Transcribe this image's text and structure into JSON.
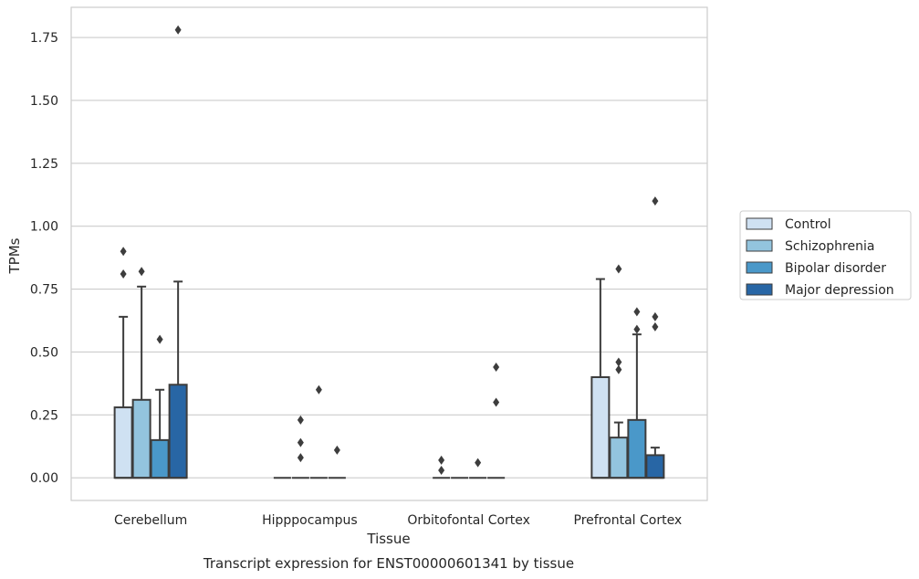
{
  "chart_data": {
    "type": "box",
    "title": "Transcript expression for ENST00000601341 by tissue",
    "xlabel": "Tissue",
    "ylabel": "TPMs",
    "ylim": [
      -0.09,
      1.87
    ],
    "yticks": [
      0.0,
      0.25,
      0.5,
      0.75,
      1.0,
      1.25,
      1.5,
      1.75
    ],
    "ytick_labels": [
      "0.00",
      "0.25",
      "0.50",
      "0.75",
      "1.00",
      "1.25",
      "1.50",
      "1.75"
    ],
    "grid": "horizontal",
    "legend_position": "outside-right",
    "categories": [
      "Cerebellum",
      "Hipppocampus",
      "Orbitofontal Cortex",
      "Prefrontal Cortex"
    ],
    "series": [
      {
        "name": "Control",
        "color": "#cfe1f2",
        "boxes": [
          {
            "q1": 0.0,
            "median": 0.0,
            "q3": 0.28,
            "whisker_low": 0.0,
            "whisker_high": 0.64,
            "outliers": [
              0.81,
              0.9
            ]
          },
          {
            "q1": 0.0,
            "median": 0.0,
            "q3": 0.0,
            "whisker_low": 0.0,
            "whisker_high": 0.0,
            "outliers": []
          },
          {
            "q1": 0.0,
            "median": 0.0,
            "q3": 0.0,
            "whisker_low": 0.0,
            "whisker_high": 0.0,
            "outliers": [
              0.03,
              0.07
            ]
          },
          {
            "q1": 0.0,
            "median": 0.0,
            "q3": 0.4,
            "whisker_low": 0.0,
            "whisker_high": 0.79,
            "outliers": []
          }
        ]
      },
      {
        "name": "Schizophrenia",
        "color": "#93c4de",
        "boxes": [
          {
            "q1": 0.0,
            "median": 0.0,
            "q3": 0.31,
            "whisker_low": 0.0,
            "whisker_high": 0.76,
            "outliers": [
              0.82
            ]
          },
          {
            "q1": 0.0,
            "median": 0.0,
            "q3": 0.0,
            "whisker_low": 0.0,
            "whisker_high": 0.0,
            "outliers": [
              0.08,
              0.14,
              0.23
            ]
          },
          {
            "q1": 0.0,
            "median": 0.0,
            "q3": 0.0,
            "whisker_low": 0.0,
            "whisker_high": 0.0,
            "outliers": []
          },
          {
            "q1": 0.0,
            "median": 0.0,
            "q3": 0.16,
            "whisker_low": 0.0,
            "whisker_high": 0.22,
            "outliers": [
              0.43,
              0.46,
              0.83
            ]
          }
        ]
      },
      {
        "name": "Bipolar disorder",
        "color": "#4a98c9",
        "boxes": [
          {
            "q1": 0.0,
            "median": 0.0,
            "q3": 0.15,
            "whisker_low": 0.0,
            "whisker_high": 0.35,
            "outliers": [
              0.55
            ]
          },
          {
            "q1": 0.0,
            "median": 0.0,
            "q3": 0.0,
            "whisker_low": 0.0,
            "whisker_high": 0.0,
            "outliers": [
              0.35
            ]
          },
          {
            "q1": 0.0,
            "median": 0.0,
            "q3": 0.0,
            "whisker_low": 0.0,
            "whisker_high": 0.0,
            "outliers": [
              0.06
            ]
          },
          {
            "q1": 0.0,
            "median": 0.0,
            "q3": 0.23,
            "whisker_low": 0.0,
            "whisker_high": 0.57,
            "outliers": [
              0.59,
              0.66
            ]
          }
        ]
      },
      {
        "name": "Major depression",
        "color": "#2866a5",
        "boxes": [
          {
            "q1": 0.0,
            "median": 0.0,
            "q3": 0.37,
            "whisker_low": 0.0,
            "whisker_high": 0.78,
            "outliers": [
              1.78
            ]
          },
          {
            "q1": 0.0,
            "median": 0.0,
            "q3": 0.0,
            "whisker_low": 0.0,
            "whisker_high": 0.0,
            "outliers": [
              0.11
            ]
          },
          {
            "q1": 0.0,
            "median": 0.0,
            "q3": 0.0,
            "whisker_low": 0.0,
            "whisker_high": 0.0,
            "outliers": [
              0.3,
              0.44
            ]
          },
          {
            "q1": 0.0,
            "median": 0.0,
            "q3": 0.09,
            "whisker_low": 0.0,
            "whisker_high": 0.12,
            "outliers": [
              0.6,
              0.64,
              1.1
            ]
          }
        ]
      }
    ]
  }
}
